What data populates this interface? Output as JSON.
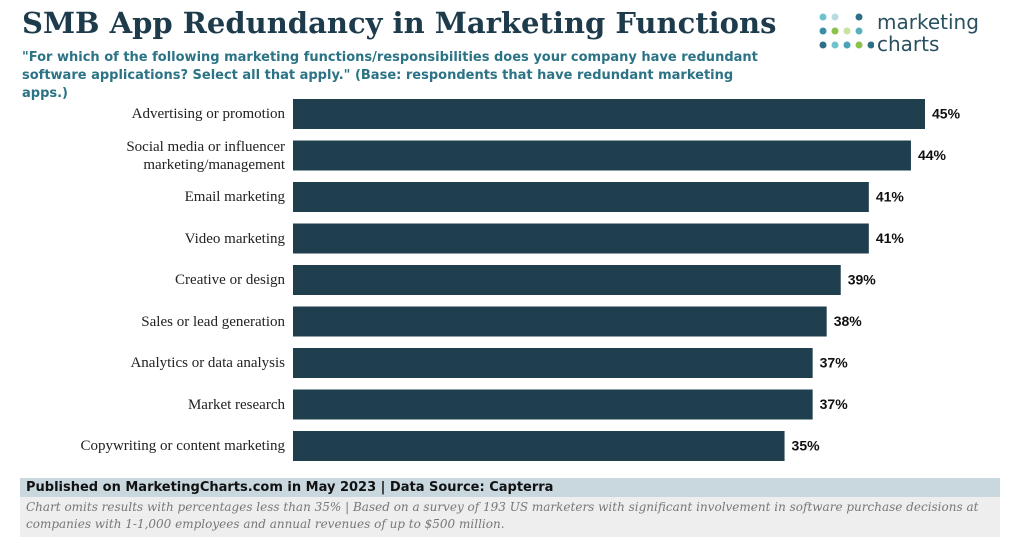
{
  "chart_data": {
    "type": "bar",
    "orientation": "horizontal",
    "title": "SMB App Redundancy in Marketing Functions",
    "subtitle": "\"For which of the following marketing functions/responsibilities does your company have redundant software applications? Select all that apply.\" (Base: respondents that have redundant marketing apps.)",
    "brand": [
      "marketing",
      "charts"
    ],
    "categories": [
      "Advertising or promotion",
      "Social media or influencer marketing/management",
      "Email marketing",
      "Video marketing",
      "Creative or design",
      "Sales or lead generation",
      "Analytics or data analysis",
      "Market research",
      "Copywriting or content marketing"
    ],
    "values": [
      45,
      44,
      41,
      41,
      39,
      38,
      37,
      37,
      35
    ],
    "value_labels": [
      "45%",
      "44%",
      "41%",
      "41%",
      "39%",
      "38%",
      "37%",
      "37%",
      "35%"
    ],
    "color": "#1f3f4e",
    "source": "Published on MarketingCharts.com in May 2023 | Data Source: Capterra",
    "note": "Chart omits results with percentages less than 35% | Based on a survey of 193 US marketers with significant involvement in software purchase decisions at companies with 1-1,000 employees and annual revenues of up to $500 million."
  }
}
